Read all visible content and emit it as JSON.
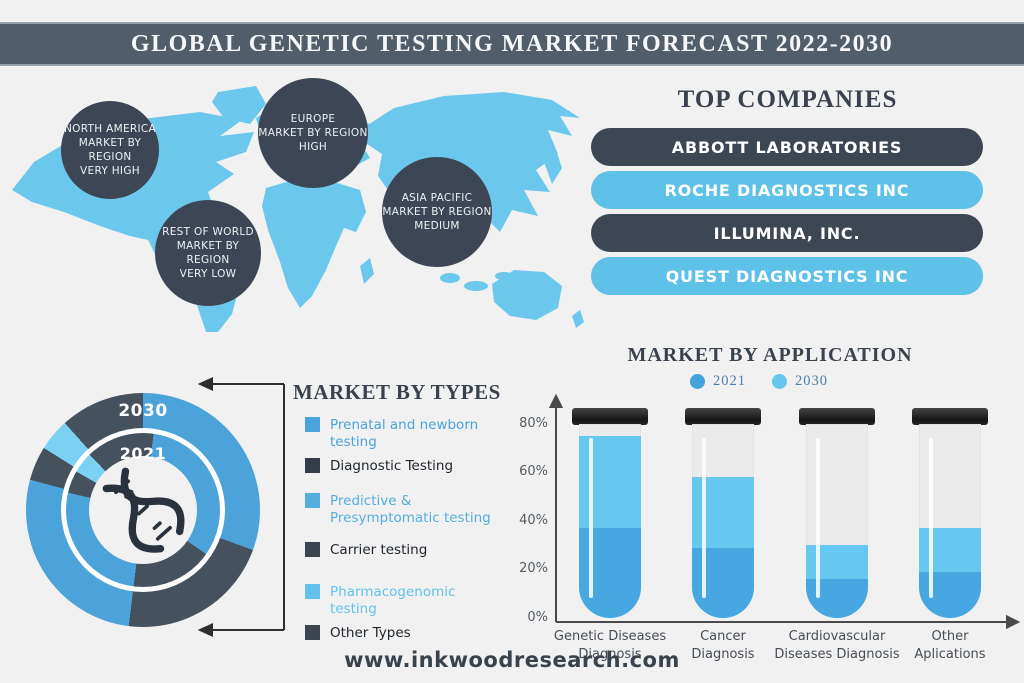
{
  "banner": {
    "title": "GLOBAL GENETIC TESTING MARKET FORECAST 2022-2030"
  },
  "map": {
    "land_color": "#6cc7ed",
    "circle_color": "#3d4654",
    "regions": [
      {
        "name": "NORTH AMERICA",
        "scope": "MARKET BY REGION",
        "level": "VERY HIGH"
      },
      {
        "name": "EUROPE",
        "scope": "MARKET BY REGION",
        "level": "HIGH"
      },
      {
        "name": "ASIA PACIFIC",
        "scope": "MARKET BY REGION",
        "level": "MEDIUM"
      },
      {
        "name": "REST OF WORLD",
        "scope": "MARKET BY REGION",
        "level": "VERY LOW"
      }
    ]
  },
  "companies": {
    "title": "TOP COMPANIES",
    "items": [
      {
        "label": "ABBOTT LABORATORIES",
        "bg": "#3d4653",
        "fg": "#ffffff"
      },
      {
        "label": "ROCHE DIAGNOSTICS INC",
        "bg": "#5ec1e8",
        "fg": "#ffffff"
      },
      {
        "label": "ILLUMINA, INC.",
        "bg": "#3d4653",
        "fg": "#ffffff"
      },
      {
        "label": "QUEST DIAGNOSTICS INC",
        "bg": "#5ec1e8",
        "fg": "#ffffff"
      }
    ]
  },
  "types": {
    "title": "MARKET BY TYPES",
    "outer_ring_label": "2030",
    "inner_ring_label": "2021",
    "legend": [
      {
        "label": "Prenatal and newborn testing",
        "color": "#4ba3da",
        "text_color": "#4ba3da"
      },
      {
        "label": "Diagnostic Testing",
        "color": "#333c47",
        "text_color": "#20262e"
      },
      {
        "label": "Predictive & Presymptomatic testing",
        "color": "#54aede",
        "text_color": "#54aede"
      },
      {
        "label": "Carrier testing",
        "color": "#3c4450",
        "text_color": "#20262e"
      },
      {
        "label": "Pharmacogenomic testing",
        "color": "#63c2ec",
        "text_color": "#63c2ec"
      },
      {
        "label": "Other Types",
        "color": "#3c4450",
        "text_color": "#20262e"
      }
    ]
  },
  "application": {
    "title": "MARKET BY APPLICATION",
    "legend": [
      {
        "label": "2021",
        "color": "#42a4da"
      },
      {
        "label": "2030",
        "color": "#67c6ee"
      }
    ],
    "y_ticks": [
      "80%",
      "60%",
      "40%",
      "20%",
      "0%"
    ],
    "categories_lines": [
      {
        "line1": "Genetic Diseases",
        "line2": "Diagnosis"
      },
      {
        "line1": "Cancer",
        "line2": "Diagnosis"
      },
      {
        "line1": "Cardiovascular",
        "line2": "Diseases Diagnosis"
      },
      {
        "line1": "Other",
        "line2": "Aplications"
      }
    ]
  },
  "chart_data": [
    {
      "type": "pie",
      "subtype": "double-ring-donut",
      "title": "MARKET BY TYPES",
      "categories": [
        "Prenatal and newborn testing",
        "Diagnostic Testing",
        "Predictive & Presymptomatic testing",
        "Carrier testing",
        "Pharmacogenomic testing",
        "Other Types"
      ],
      "rings": [
        {
          "name": "2030",
          "position": "outer",
          "approx_percent": [
            31,
            21,
            27,
            5,
            4,
            12
          ],
          "segment_angles": [
            {
              "label": "Prenatal and newborn testing",
              "color": "#4ba3da",
              "from": 0,
              "to": 110
            },
            {
              "label": "Diagnostic Testing",
              "color": "#46515e",
              "from": 110,
              "to": 187
            },
            {
              "label": "Predictive & Presymptomatic testing",
              "color": "#4ba3da",
              "from": 187,
              "to": 285
            },
            {
              "label": "Carrier testing",
              "color": "#46515e",
              "from": 285,
              "to": 302
            },
            {
              "label": "Pharmacogenomic testing",
              "color": "#7cd0f2",
              "from": 302,
              "to": 318
            },
            {
              "label": "Other Types",
              "color": "#46515e",
              "from": 318,
              "to": 360
            }
          ]
        },
        {
          "name": "2021",
          "position": "inner",
          "approx_percent": [
            33,
            17,
            27,
            5,
            4,
            14
          ],
          "segment_angles": [
            {
              "label": "Other Types (wrap)",
              "color": "#46515e",
              "from": 0,
              "to": 8
            },
            {
              "label": "Prenatal and newborn testing",
              "color": "#4ba3da",
              "from": 8,
              "to": 125
            },
            {
              "label": "Diagnostic Testing",
              "color": "#46515e",
              "from": 125,
              "to": 187
            },
            {
              "label": "Predictive & Presymptomatic testing",
              "color": "#4ba3da",
              "from": 187,
              "to": 283
            },
            {
              "label": "Carrier testing",
              "color": "#46515e",
              "from": 283,
              "to": 300
            },
            {
              "label": "Pharmacogenomic testing",
              "color": "#7cd0f2",
              "from": 300,
              "to": 316
            },
            {
              "label": "Other Types",
              "color": "#46515e",
              "from": 316,
              "to": 360
            }
          ]
        }
      ]
    },
    {
      "type": "bar",
      "style": "test-tubes",
      "title": "MARKET BY APPLICATION",
      "categories": [
        "Genetic Diseases Diagnosis",
        "Cancer Diagnosis",
        "Cardiovascular Diseases Diagnosis",
        "Other Aplications"
      ],
      "series": [
        {
          "name": "2021",
          "color": "#47a7e0",
          "values": [
            37,
            29,
            16,
            19
          ]
        },
        {
          "name": "2030",
          "color": "#66c8f0",
          "values": [
            75,
            58,
            30,
            37
          ]
        }
      ],
      "ylim": [
        0,
        80
      ],
      "y_ticks_percent": [
        0,
        20,
        40,
        60,
        80
      ],
      "legend_position": "top"
    }
  ],
  "footer": {
    "website": "www.inkwoodresearch.com"
  }
}
